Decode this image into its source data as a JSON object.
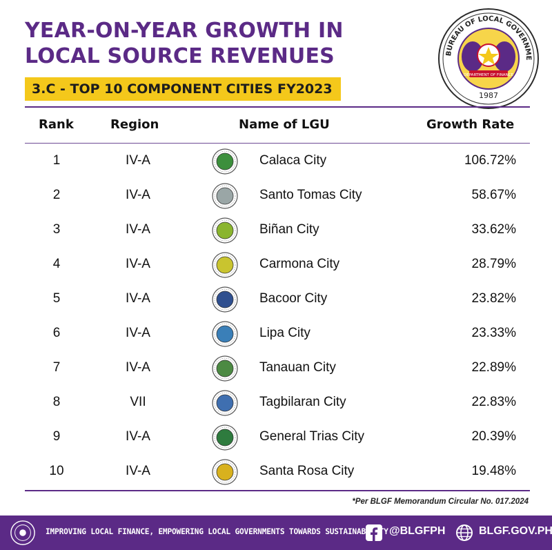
{
  "header": {
    "title_line1": "YEAR-ON-YEAR GROWTH IN",
    "title_line2": "LOCAL SOURCE REVENUES",
    "subtitle": "3.C - TOP 10 COMPONENT CITIES FY2023",
    "seal_text": "BUREAU OF LOCAL GOVERNMENT FINANCE",
    "seal_year": "1987",
    "seal_ribbon": "DEPARTMENT OF FINANCE"
  },
  "colors": {
    "brand_purple": "#5b2a86",
    "accent_yellow": "#f4c81b"
  },
  "chart_data": {
    "type": "table",
    "title": "YEAR-ON-YEAR GROWTH IN LOCAL SOURCE REVENUES",
    "subtitle": "3.C - TOP 10 COMPONENT CITIES FY2023",
    "columns": [
      "Rank",
      "Region",
      "Name of LGU",
      "Growth Rate"
    ],
    "rows": [
      {
        "rank": "1",
        "region": "IV-A",
        "name": "Calaca City",
        "growth": "106.72%",
        "logo_color": "#3c8f3c"
      },
      {
        "rank": "2",
        "region": "IV-A",
        "name": "Santo Tomas City",
        "growth": "58.67%",
        "logo_color": "#9aa6a6"
      },
      {
        "rank": "3",
        "region": "IV-A",
        "name": "Biñan City",
        "growth": "33.62%",
        "logo_color": "#8ab52e"
      },
      {
        "rank": "4",
        "region": "IV-A",
        "name": "Carmona City",
        "growth": "28.79%",
        "logo_color": "#c9c42f"
      },
      {
        "rank": "5",
        "region": "IV-A",
        "name": "Bacoor City",
        "growth": "23.82%",
        "logo_color": "#2f4f8f"
      },
      {
        "rank": "6",
        "region": "IV-A",
        "name": "Lipa City",
        "growth": "23.33%",
        "logo_color": "#3a7fb8"
      },
      {
        "rank": "7",
        "region": "IV-A",
        "name": "Tanauan City",
        "growth": "22.89%",
        "logo_color": "#4c8a43"
      },
      {
        "rank": "8",
        "region": "VII",
        "name": "Tagbilaran City",
        "growth": "22.83%",
        "logo_color": "#3f6fb0"
      },
      {
        "rank": "9",
        "region": "IV-A",
        "name": "General Trias City",
        "growth": "20.39%",
        "logo_color": "#2e7b3e"
      },
      {
        "rank": "10",
        "region": "IV-A",
        "name": "Santa Rosa City",
        "growth": "19.48%",
        "logo_color": "#d8b11e"
      }
    ]
  },
  "footnote": "*Per BLGF Memorandum Circular No. 017.2024",
  "footer": {
    "tagline": "IMPROVING LOCAL FINANCE, EMPOWERING LOCAL GOVERNMENTS TOWARDS SUSTAINABILITY",
    "facebook_icon": "facebook-icon",
    "social_handle": "@BLGFPH",
    "globe_icon": "globe-icon",
    "website": "BLGF.GOV.PH"
  }
}
